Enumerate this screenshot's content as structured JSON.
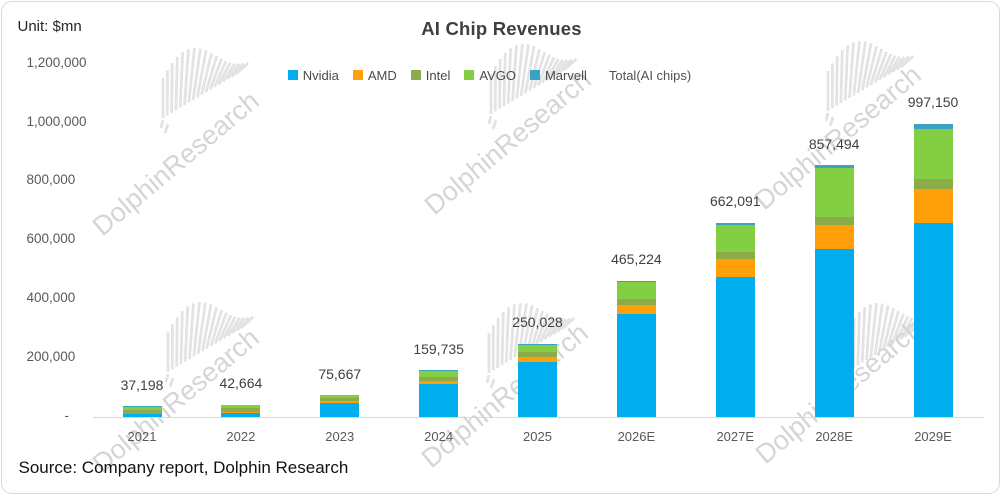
{
  "unit_label": "Unit: $mn",
  "source_note": "Source: Company report, Dolphin Research",
  "watermark_text": "DolphinResearch",
  "chart_data": {
    "type": "bar",
    "stacked": true,
    "title": "AI Chip Revenues",
    "unit": "$mn",
    "categories": [
      "2021",
      "2022",
      "2023",
      "2024",
      "2025",
      "2026E",
      "2027E",
      "2028E",
      "2029E"
    ],
    "series": [
      {
        "name": "Nvidia",
        "color": "#00AEF0",
        "values": [
          10600,
          15000,
          47500,
          114000,
          188000,
          350000,
          477000,
          573000,
          659000
        ]
      },
      {
        "name": "AMD",
        "color": "#FFA00A",
        "values": [
          1200,
          2400,
          6500,
          10300,
          18500,
          32000,
          61000,
          81000,
          118000
        ]
      },
      {
        "name": "Intel",
        "color": "#8CAC49",
        "values": [
          14000,
          15000,
          12800,
          11200,
          14500,
          20500,
          23000,
          27500,
          33500
        ]
      },
      {
        "name": "AVGO",
        "color": "#84CE43",
        "values": [
          10400,
          8800,
          7500,
          21000,
          25000,
          56500,
          93000,
          165000,
          170000
        ]
      },
      {
        "name": "Marvell",
        "color": "#3BA2C3",
        "values": [
          998,
          1464,
          1367,
          3235,
          4028,
          6224,
          8091,
          10994,
          16650
        ]
      }
    ],
    "totals": [
      37198,
      42664,
      75667,
      159735,
      250028,
      465224,
      662091,
      857494,
      997150
    ],
    "total_label": "Total(AI chips)",
    "y_ticks": [
      "-",
      "200,000",
      "400,000",
      "600,000",
      "800,000",
      "1,000,000",
      "1,200,000"
    ],
    "ylim": [
      0,
      1200000
    ],
    "grid": false,
    "legend_position": "top"
  }
}
